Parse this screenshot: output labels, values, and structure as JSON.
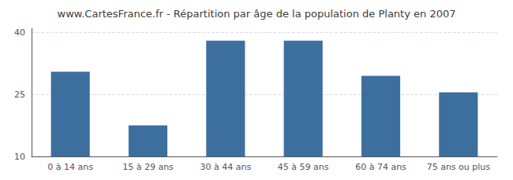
{
  "chart_data": {
    "type": "bar",
    "title": "www.CartesFrance.fr - Répartition par âge de la population de Planty en 2007",
    "categories": [
      "0 à 14 ans",
      "15 à 29 ans",
      "30 à 44 ans",
      "45 à 59 ans",
      "60 à 74 ans",
      "75 ans ou plus"
    ],
    "values": [
      30.5,
      17.5,
      38.0,
      38.0,
      29.5,
      25.5
    ],
    "color": "#3d6f9e",
    "ylim": [
      10,
      41
    ],
    "yticks": [
      10,
      25,
      40
    ],
    "grid": true
  }
}
